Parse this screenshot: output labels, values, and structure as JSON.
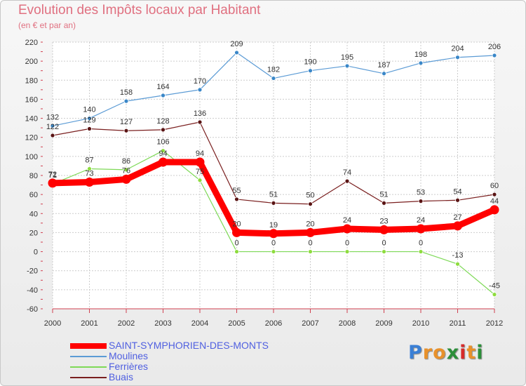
{
  "header": {
    "title": "Evolution des Impôts locaux par Habitant",
    "subtitle": "(en € et par an)"
  },
  "chart_data": {
    "type": "line",
    "title": "Evolution des Impôts locaux par Habitant",
    "ylabel": "(en € et par an)",
    "xlabel": "",
    "ylim": [
      -60,
      220
    ],
    "yticks": [
      220,
      200,
      180,
      160,
      140,
      120,
      100,
      80,
      60,
      40,
      20,
      0,
      -20,
      -40,
      -60
    ],
    "categories": [
      "2000",
      "2001",
      "2002",
      "2003",
      "2004",
      "2005",
      "2006",
      "2007",
      "2008",
      "2009",
      "2010",
      "2011",
      "2012"
    ],
    "grid": true,
    "legend_position": "bottom-left",
    "series": [
      {
        "name": "SAINT-SYMPHORIEN-DES-MONTS",
        "color": "#ff0000",
        "emphasis": "thick",
        "values": [
          72,
          73,
          76,
          94,
          94,
          20,
          19,
          20,
          24,
          23,
          24,
          27,
          44
        ]
      },
      {
        "name": "Moulines",
        "color": "#5b9bd5",
        "emphasis": "thin",
        "values": [
          132,
          140,
          158,
          164,
          170,
          209,
          182,
          190,
          195,
          187,
          198,
          204,
          206
        ]
      },
      {
        "name": "Ferrières",
        "color": "#7ed957",
        "emphasis": "thin",
        "values": [
          71,
          87,
          86,
          106,
          75,
          0,
          0,
          0,
          0,
          0,
          0,
          -13,
          -45
        ]
      },
      {
        "name": "Buais",
        "color": "#7a1f1f",
        "emphasis": "thin",
        "values": [
          122,
          129,
          127,
          128,
          136,
          55,
          51,
          50,
          74,
          51,
          53,
          54,
          60
        ]
      }
    ],
    "data_labels_shown": [
      [
        72,
        73,
        76,
        94,
        94,
        20,
        19,
        20,
        24,
        23,
        24,
        27,
        44
      ],
      [
        132,
        140,
        158,
        164,
        170,
        209,
        182,
        190,
        195,
        187,
        198,
        204,
        206
      ],
      [
        71,
        87,
        86,
        106,
        75,
        0,
        0,
        0,
        0,
        0,
        0,
        -13,
        -45
      ],
      [
        122,
        129,
        127,
        128,
        136,
        55,
        51,
        50,
        74,
        51,
        53,
        54,
        60
      ]
    ]
  },
  "legend": {
    "items": [
      {
        "label": "SAINT-SYMPHORIEN-DES-MONTS",
        "color": "#ff0000"
      },
      {
        "label": "Moulines",
        "color": "#5b9bd5"
      },
      {
        "label": "Ferrières",
        "color": "#7ed957"
      },
      {
        "label": "Buais",
        "color": "#7a1f1f"
      }
    ]
  },
  "logo": {
    "letters": [
      "P",
      "r",
      "o",
      "x",
      "i",
      "t",
      "i"
    ],
    "colors": [
      "#3a7fd5",
      "#e8912b",
      "#e8912b",
      "#2c8f3a",
      "#d62a2a",
      "#e8912b",
      "#2c8f3a"
    ]
  }
}
